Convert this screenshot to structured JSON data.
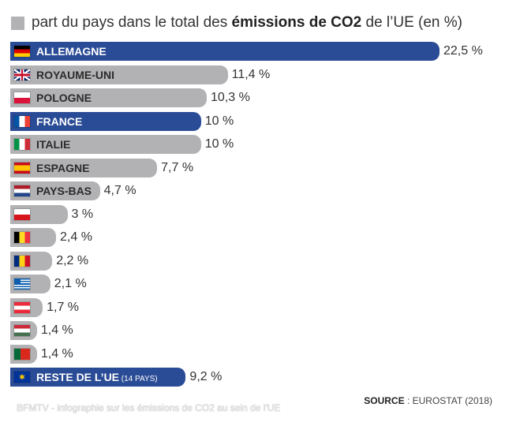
{
  "legend": {
    "text_before": "part du pays dans le total des ",
    "text_bold": "émissions de CO2",
    "text_after": " de l’UE (en %)",
    "swatch_color": "#b2b2b5"
  },
  "source": {
    "label": "SOURCE",
    "separator": " : ",
    "value": "EUROSTAT (2018)"
  },
  "watermark": "BFMTV - infographie sur les émissions de CO2 au sein de l'UE",
  "colors": {
    "grey_bar": "#b2b2b5",
    "blue_bar": "#2a4b95"
  },
  "chart_data": {
    "type": "bar",
    "orientation": "horizontal",
    "title": "part du pays dans le total des émissions de CO2 de l’UE (en %)",
    "xlabel": "",
    "ylabel": "",
    "xlim": [
      0,
      22.5
    ],
    "grid": false,
    "unit": "%",
    "categories": [
      {
        "label": "ALLEMAGNE",
        "flag": "flag-germany",
        "value": 22.5,
        "display": "22,5 %",
        "highlight": true
      },
      {
        "label": "ROYAUME-UNI",
        "flag": "flag-united-kingdom",
        "value": 11.4,
        "display": "11,4 %",
        "highlight": false
      },
      {
        "label": "POLOGNE",
        "flag": "flag-poland",
        "value": 10.3,
        "display": "10,3 %",
        "highlight": false
      },
      {
        "label": "FRANCE",
        "flag": "flag-france",
        "value": 10,
        "display": "10 %",
        "highlight": true
      },
      {
        "label": "ITALIE",
        "flag": "flag-italy",
        "value": 10,
        "display": "10 %",
        "highlight": false
      },
      {
        "label": "ESPAGNE",
        "flag": "flag-spain",
        "value": 7.7,
        "display": "7,7 %",
        "highlight": false
      },
      {
        "label": "PAYS-BAS",
        "flag": "flag-netherlands",
        "value": 4.7,
        "display": "4,7 %",
        "highlight": false
      },
      {
        "label": "",
        "flag": "flag-czech-republic",
        "value": 3,
        "display": "3 %",
        "highlight": false
      },
      {
        "label": "",
        "flag": "flag-belgium",
        "value": 2.4,
        "display": "2,4 %",
        "highlight": false
      },
      {
        "label": "",
        "flag": "flag-romania",
        "value": 2.2,
        "display": "2,2 %",
        "highlight": false
      },
      {
        "label": "",
        "flag": "flag-greece",
        "value": 2.1,
        "display": "2,1 %",
        "highlight": false
      },
      {
        "label": "",
        "flag": "flag-austria",
        "value": 1.7,
        "display": "1,7 %",
        "highlight": false
      },
      {
        "label": "",
        "flag": "flag-hungary",
        "value": 1.4,
        "display": "1,4 %",
        "highlight": false
      },
      {
        "label": "",
        "flag": "flag-portugal",
        "value": 1.4,
        "display": "1,4 %",
        "highlight": false
      },
      {
        "label": "RESTE DE L’UE",
        "sublabel": "(14 PAYS)",
        "flag": "flag-eu",
        "value": 9.2,
        "display": "9,2 %",
        "highlight": true
      }
    ]
  }
}
